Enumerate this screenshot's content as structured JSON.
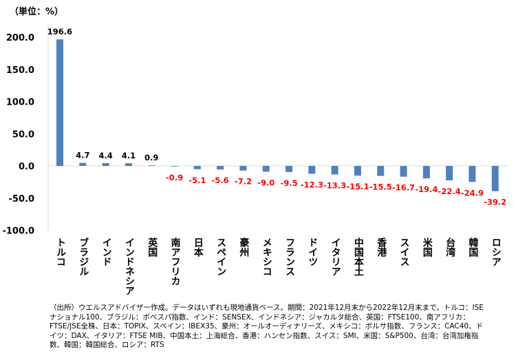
{
  "chart_data": {
    "type": "bar",
    "unit_label": "（単位：%）",
    "categories": [
      "トルコ",
      "ブラジル",
      "インド",
      "インドネシア",
      "英国",
      "南アフリカ",
      "日本",
      "スペイン",
      "豪州",
      "メキシコ",
      "フランス",
      "ドイツ",
      "イタリア",
      "中国本土",
      "香港",
      "スイス",
      "米国",
      "台湾",
      "韓国",
      "ロシア"
    ],
    "values": [
      196.6,
      4.7,
      4.4,
      4.1,
      0.9,
      -0.9,
      -5.1,
      -5.6,
      -7.2,
      -9.0,
      -9.5,
      -12.3,
      -13.3,
      -15.1,
      -15.5,
      -16.7,
      -19.4,
      -22.4,
      -24.9,
      -39.2
    ],
    "value_labels": [
      "196.6",
      "4.7",
      "4.4",
      "4.1",
      "0.9",
      "-0.9",
      "-5.1",
      "-5.6",
      "-7.2",
      "-9.0",
      "-9.5",
      "-12.3",
      "-13.3",
      "-15.1",
      "-15.5",
      "-16.7",
      "-19.4",
      "-22.4",
      "-24.9",
      "-39.2"
    ],
    "yticks": [
      200,
      150,
      100,
      50,
      0,
      -50,
      -100
    ],
    "ytick_labels": [
      "200.0",
      "150.0",
      "100.0",
      "50.0",
      "0.0",
      "-50.0",
      "-100.0"
    ],
    "ylim": [
      -100,
      220
    ],
    "grid": false,
    "colors": {
      "bar": "#4f81bd",
      "negative_label": "#ff0000",
      "positive_label": "#000000"
    }
  },
  "note": "（出所）ウエルスアドバイザー作成。データはいずれも現地通貨ベース。期間：2021年12月末から2022年12月末まで。トルコ：ISEナショナル100、ブラジル：ボベスパ指数、インド：SENSEX、インドネシア：ジャカルタ総合、英国：FTSE100、南アフリカ：FTSE/JSE全株、日本：TOPIX、スペイン：IBEX35、豪州：オールオーディナリーズ、メキシコ：ボルサ指数、フランス：CAC40、ドイツ：DAX、イタリア：FTSE MIB、中国本土：上海総合、香港：ハンセン指数、スイス：SMI、米国：S&P500、台湾：台湾加権指数、韓国：韓国総合、ロシア：RTS"
}
